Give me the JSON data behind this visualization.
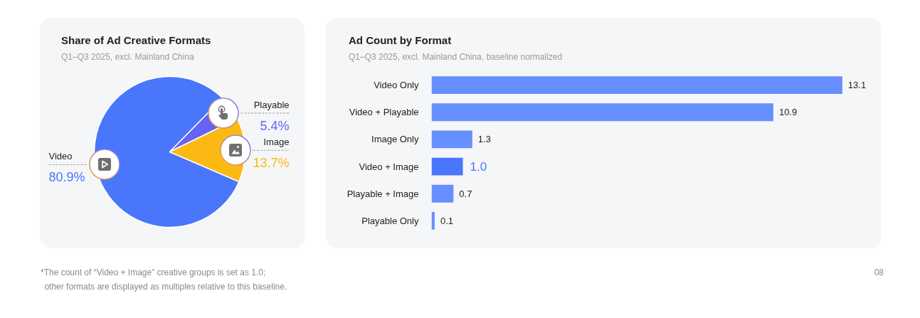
{
  "chart_data": [
    {
      "type": "pie",
      "title": "Share of Ad Creative Formats",
      "subtitle": "Q1–Q3 2025, excl. Mainland China",
      "categories": [
        "Video",
        "Playable",
        "Image"
      ],
      "values": [
        80.9,
        5.4,
        13.7
      ],
      "colors": [
        "#4a76fb",
        "#6663f6",
        "#fdb913"
      ],
      "value_labels": [
        "80.9%",
        "5.4%",
        "13.7%"
      ],
      "annotations": [
        "*The count of “Video + Image” creative groups is set as 1.0;\nother formats are displayed as multiples relative to this baseline."
      ]
    },
    {
      "type": "bar",
      "orientation": "horizontal",
      "title": "Ad Count by Format",
      "subtitle": "Q1–Q3 2025, excl. Mainland China, baseline normalized",
      "categories": [
        "Video Only",
        "Video + Playable",
        "Image Only",
        "Video + Image",
        "Playable + Image",
        "Playable Only"
      ],
      "values": [
        13.1,
        10.9,
        1.3,
        1.0,
        0.7,
        0.1
      ],
      "colors": [
        "#688fff",
        "#688fff",
        "#688fff",
        "#4a76fb",
        "#688fff",
        "#688fff"
      ],
      "value_labels": [
        "13.1",
        "10.9",
        "1.3",
        "1.0",
        "0.7",
        "0.1"
      ],
      "tick_labels": "y",
      "annotations": [
        "08"
      ]
    }
  ]
}
